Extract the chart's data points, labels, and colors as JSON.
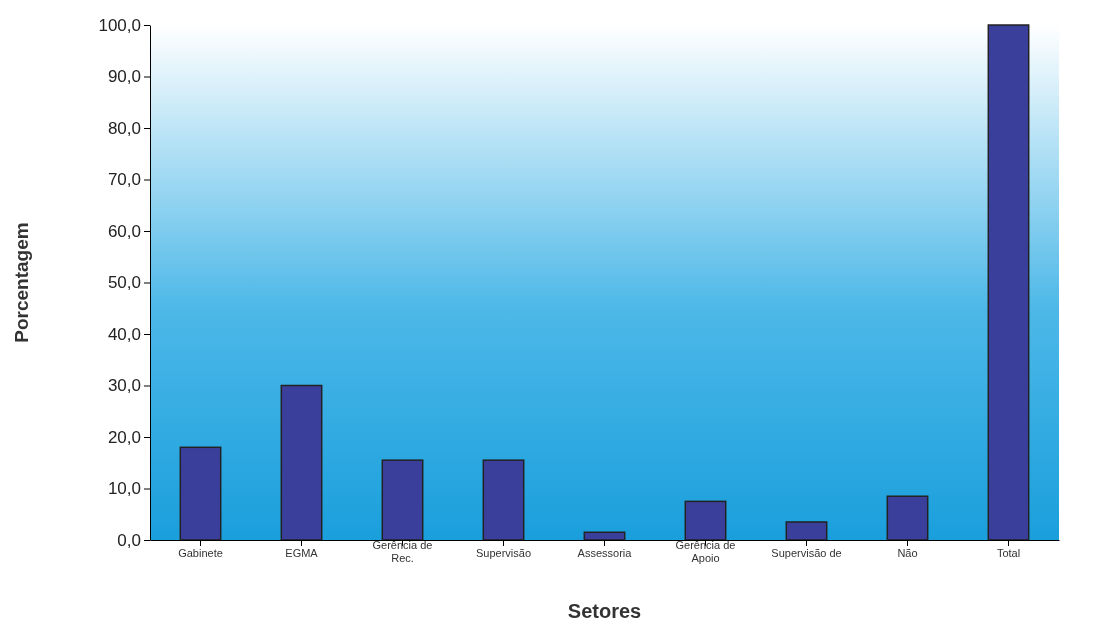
{
  "chart_data": {
    "type": "bar",
    "xlabel": "Setores",
    "ylabel": "Porcentagem",
    "categories": [
      "Gabinete",
      "EGMA",
      "Gerência de Rec.",
      "Supervisão",
      "Assessoria",
      "Gerência de Apoio",
      "Supervisão de",
      "Não",
      "Total"
    ],
    "values": [
      18,
      30,
      15.5,
      15.5,
      1.5,
      7.5,
      3.5,
      8.5,
      100
    ],
    "color": "#3b3f9c",
    "ylim": [
      0,
      100
    ],
    "yticks": [
      {
        "value": 0,
        "label": "0,0"
      },
      {
        "value": 10,
        "label": "10,0"
      },
      {
        "value": 20,
        "label": "20,0"
      },
      {
        "value": 30,
        "label": "30,0"
      },
      {
        "value": 40,
        "label": "40,0"
      },
      {
        "value": 50,
        "label": "50,0"
      },
      {
        "value": 60,
        "label": "60,0"
      },
      {
        "value": 70,
        "label": "70,0"
      },
      {
        "value": 80,
        "label": "80,0"
      },
      {
        "value": 90,
        "label": "90,0"
      },
      {
        "value": 100,
        "label": "100,0"
      }
    ],
    "grid": false
  }
}
